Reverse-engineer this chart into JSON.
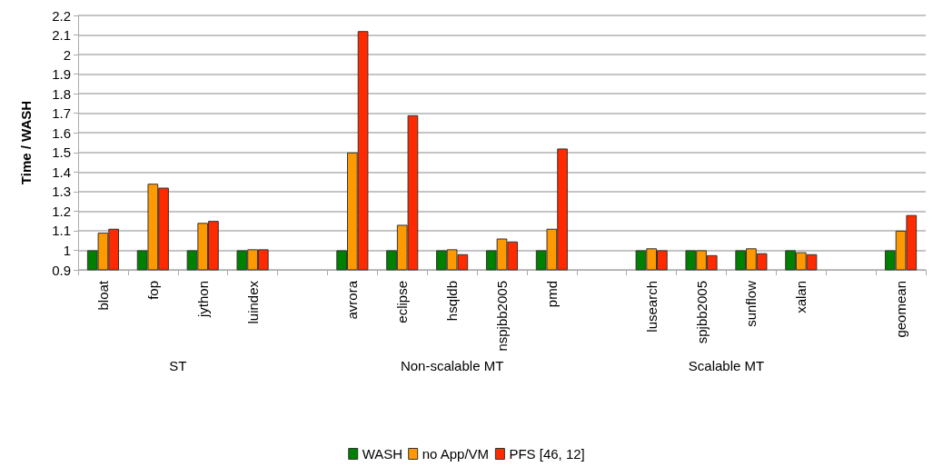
{
  "chart_data": {
    "type": "bar",
    "ylabel": "Time / WASH",
    "categories": [
      "bloat",
      "fop",
      "jython",
      "luindex",
      null,
      "avrora",
      "eclipse",
      "hsqldb",
      "nspjbb2005",
      "pmd",
      null,
      "lusearch",
      "spjbb2005",
      "sunflow",
      "xalan",
      null,
      "geomean"
    ],
    "series": [
      {
        "name": "WASH",
        "color": "#008000",
        "values": [
          1.0,
          1.0,
          1.0,
          1.0,
          null,
          1.0,
          1.0,
          1.0,
          1.0,
          1.0,
          null,
          1.0,
          1.0,
          1.0,
          1.0,
          null,
          1.0
        ]
      },
      {
        "name": "no App/VM",
        "color": "#ff9900",
        "values": [
          1.09,
          1.34,
          1.14,
          1.005,
          null,
          1.5,
          1.13,
          1.005,
          1.06,
          1.11,
          null,
          1.01,
          1.0,
          1.01,
          0.99,
          null,
          1.1
        ]
      },
      {
        "name": "PFS [46, 12]",
        "color": "#ff2a00",
        "values": [
          1.11,
          1.32,
          1.15,
          1.005,
          null,
          2.12,
          1.69,
          0.98,
          1.045,
          1.52,
          null,
          1.0,
          0.975,
          0.985,
          0.98,
          null,
          1.18
        ]
      }
    ],
    "ylim": [
      0.9,
      2.2
    ],
    "yticks": [
      0.9,
      1,
      1.1,
      1.2,
      1.3,
      1.4,
      1.5,
      1.6,
      1.7,
      1.8,
      1.9,
      2,
      2.1,
      2.2
    ],
    "annotations": [
      "ST",
      "Non-scalable MT",
      "Scalable MT"
    ],
    "grid": "y",
    "legend": "bottom"
  }
}
